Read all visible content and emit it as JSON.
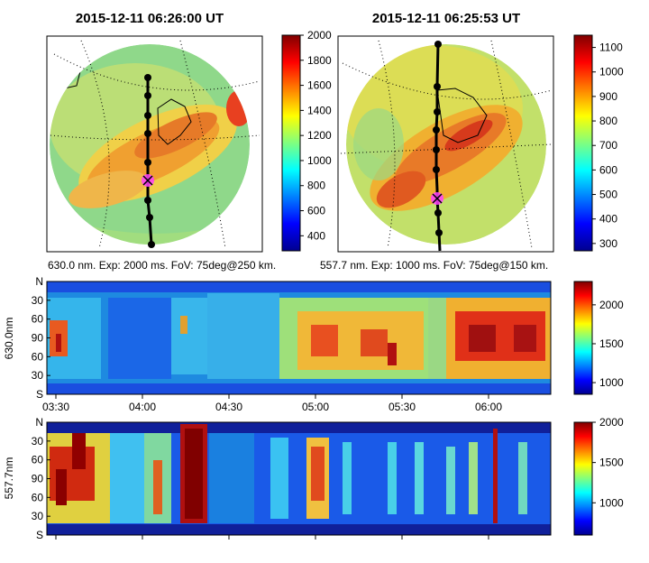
{
  "chart_data": [
    {
      "type": "heatmap",
      "panel": "all-sky-left",
      "title": "2015-12-11 06:26:00 UT",
      "caption": "630.0 nm. Exp: 2000 ms. FoV: 75deg@250 km.",
      "colorbar": {
        "ticks": [
          400,
          600,
          800,
          1000,
          1200,
          1400,
          1600,
          1800,
          2000
        ],
        "range": [
          280,
          2000
        ]
      },
      "track_points": 8
    },
    {
      "type": "heatmap",
      "panel": "all-sky-right",
      "title": "2015-12-11 06:25:53 UT",
      "caption": "557.7 nm. Exp: 1000 ms. FoV: 75deg@150 km.",
      "colorbar": {
        "ticks": [
          300,
          400,
          500,
          600,
          700,
          800,
          900,
          1000,
          1100
        ],
        "range": [
          270,
          1150
        ]
      },
      "track_points": 8
    },
    {
      "type": "heatmap",
      "panel": "keogram-630",
      "ylabel": "630.0nm",
      "y_ticks": [
        "N",
        "30",
        "60",
        "90",
        "60",
        "30",
        "S"
      ],
      "x_ticks": [
        "03:30",
        "04:00",
        "04:30",
        "05:00",
        "05:30",
        "06:00"
      ],
      "colorbar": {
        "ticks": [
          1000,
          1500,
          2000
        ],
        "range": [
          850,
          2300
        ]
      }
    },
    {
      "type": "heatmap",
      "panel": "keogram-557",
      "ylabel": "557.7nm",
      "y_ticks": [
        "N",
        "30",
        "60",
        "90",
        "60",
        "30",
        "S"
      ],
      "colorbar": {
        "ticks": [
          1000,
          1500,
          2000
        ],
        "range": [
          600,
          2000
        ]
      }
    }
  ]
}
